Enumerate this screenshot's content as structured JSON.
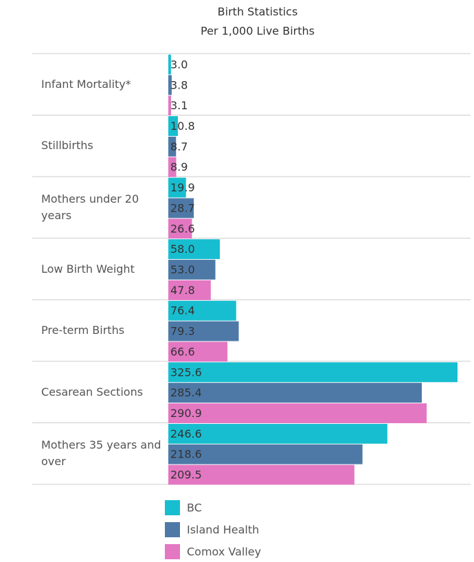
{
  "chart_data": {
    "type": "bar",
    "orientation": "horizontal",
    "title": "Birth Statistics",
    "subtitle": "Per 1,000 Live Births",
    "categories": [
      "Infant Mortality*",
      "Stillbirths",
      "Mothers under 20 years",
      "Low Birth Weight",
      "Pre-term Births",
      "Cesarean Sections",
      "Mothers 35 years and over"
    ],
    "series": [
      {
        "name": "BC",
        "color": "#17becf",
        "values": [
          3.0,
          10.8,
          19.9,
          58.0,
          76.4,
          325.6,
          246.6
        ],
        "value_labels": [
          "3.0",
          "10.8",
          "19.9",
          "58.0",
          "76.4",
          "325.6",
          "246.6"
        ]
      },
      {
        "name": "Island Health",
        "color": "#4e79a7",
        "values": [
          3.8,
          8.7,
          28.7,
          53.0,
          79.3,
          285.4,
          218.6
        ],
        "value_labels": [
          "3.8",
          "8.7",
          "28.7",
          "53.0",
          "79.3",
          "285.4",
          "218.6"
        ]
      },
      {
        "name": "Comox Valley",
        "color": "#e377c2",
        "values": [
          3.1,
          8.9,
          26.6,
          47.8,
          66.6,
          290.9,
          209.5
        ],
        "value_labels": [
          "3.1",
          "8.9",
          "26.6",
          "47.8",
          "66.6",
          "290.9",
          "209.5"
        ]
      }
    ]
  }
}
